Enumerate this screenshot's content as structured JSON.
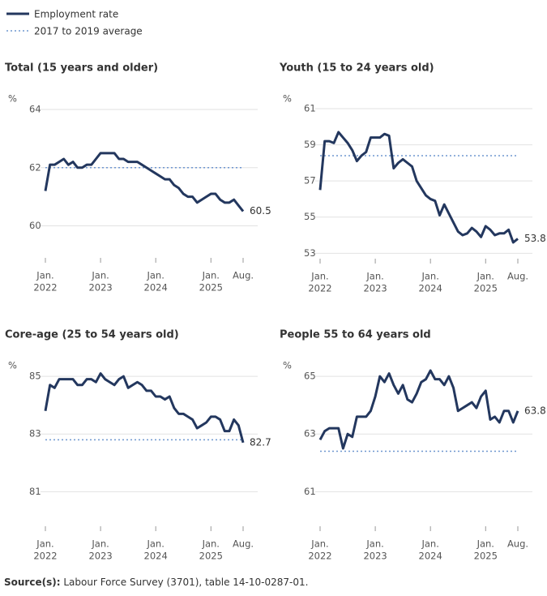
{
  "legend": [
    {
      "name": "Employment rate",
      "color": "#23375e"
    },
    {
      "name": "2017 to 2019 average",
      "color": "#6f97d0"
    }
  ],
  "source_label": "Source(s):",
  "source_text": "Labour Force Survey (3701), table 14-10-0287-01.",
  "chart_data": [
    {
      "type": "line",
      "title": "Total (15 years and older)",
      "y_label": "%",
      "categories": [
        [
          "Jan.",
          "2022"
        ],
        null,
        null,
        null,
        null,
        null,
        null,
        null,
        null,
        null,
        null,
        null,
        [
          "Jan.",
          "2023"
        ],
        null,
        null,
        null,
        null,
        null,
        null,
        null,
        null,
        null,
        null,
        null,
        [
          "Jan.",
          "2024"
        ],
        null,
        null,
        null,
        null,
        null,
        null,
        null,
        null,
        null,
        null,
        null,
        [
          "Jan.",
          "2025"
        ],
        null,
        null,
        null,
        null,
        null,
        null,
        [
          "Aug."
        ]
      ],
      "series": [
        {
          "name": "Employment rate",
          "color": "#23375e",
          "values": [
            61.2,
            62.1,
            62.1,
            62.2,
            62.3,
            62.1,
            62.2,
            62.0,
            62.0,
            62.1,
            62.1,
            62.3,
            62.5,
            62.5,
            62.5,
            62.5,
            62.3,
            62.3,
            62.2,
            62.2,
            62.2,
            62.1,
            62.0,
            61.9,
            61.8,
            61.7,
            61.6,
            61.6,
            61.4,
            61.3,
            61.1,
            61.0,
            61.0,
            60.8,
            60.9,
            61.0,
            61.1,
            61.1,
            60.9,
            60.8,
            60.8,
            60.9,
            60.7,
            60.5
          ]
        }
      ],
      "average": 62.0,
      "ylim": [
        58.9,
        64
      ],
      "yticks": [
        60,
        62,
        64
      ]
    },
    {
      "type": "line",
      "title": "Youth (15 to 24 years old)",
      "y_label": "%",
      "categories": [
        [
          "Jan.",
          "2022"
        ],
        null,
        null,
        null,
        null,
        null,
        null,
        null,
        null,
        null,
        null,
        null,
        [
          "Jan.",
          "2023"
        ],
        null,
        null,
        null,
        null,
        null,
        null,
        null,
        null,
        null,
        null,
        null,
        [
          "Jan.",
          "2024"
        ],
        null,
        null,
        null,
        null,
        null,
        null,
        null,
        null,
        null,
        null,
        null,
        [
          "Jan.",
          "2025"
        ],
        null,
        null,
        null,
        null,
        null,
        null,
        [
          "Aug."
        ]
      ],
      "series": [
        {
          "name": "Employment rate",
          "color": "#23375e",
          "values": [
            56.5,
            59.2,
            59.2,
            59.1,
            59.7,
            59.4,
            59.1,
            58.7,
            58.1,
            58.4,
            58.6,
            59.4,
            59.4,
            59.4,
            59.6,
            59.5,
            57.7,
            58.0,
            58.2,
            58.0,
            57.8,
            57.0,
            56.6,
            56.2,
            56.0,
            55.9,
            55.1,
            55.7,
            55.2,
            54.7,
            54.2,
            54.0,
            54.1,
            54.4,
            54.2,
            53.9,
            54.5,
            54.3,
            54.0,
            54.1,
            54.1,
            54.3,
            53.6,
            53.8
          ]
        }
      ],
      "average": 58.4,
      "ylim": [
        52.7,
        61
      ],
      "yticks": [
        53,
        55,
        57,
        59,
        61
      ]
    },
    {
      "type": "line",
      "title": "Core-age (25 to 54 years old)",
      "y_label": "%",
      "categories": [
        [
          "Jan.",
          "2022"
        ],
        null,
        null,
        null,
        null,
        null,
        null,
        null,
        null,
        null,
        null,
        null,
        [
          "Jan.",
          "2023"
        ],
        null,
        null,
        null,
        null,
        null,
        null,
        null,
        null,
        null,
        null,
        null,
        [
          "Jan.",
          "2024"
        ],
        null,
        null,
        null,
        null,
        null,
        null,
        null,
        null,
        null,
        null,
        null,
        [
          "Jan.",
          "2025"
        ],
        null,
        null,
        null,
        null,
        null,
        null,
        [
          "Aug."
        ]
      ],
      "series": [
        {
          "name": "Employment rate",
          "color": "#23375e",
          "values": [
            83.8,
            84.7,
            84.6,
            84.9,
            84.9,
            84.9,
            84.9,
            84.7,
            84.7,
            84.9,
            84.9,
            84.8,
            85.1,
            84.9,
            84.8,
            84.7,
            84.9,
            85.0,
            84.6,
            84.7,
            84.8,
            84.7,
            84.5,
            84.5,
            84.3,
            84.3,
            84.2,
            84.3,
            83.9,
            83.7,
            83.7,
            83.6,
            83.5,
            83.2,
            83.3,
            83.4,
            83.6,
            83.6,
            83.5,
            83.1,
            83.1,
            83.5,
            83.3,
            82.7
          ]
        }
      ],
      "average": 82.8,
      "ylim": [
        79.8,
        85.2
      ],
      "yticks": [
        81,
        83,
        85
      ]
    },
    {
      "type": "line",
      "title": "People 55 to 64 years old",
      "y_label": "%",
      "categories": [
        [
          "Jan.",
          "2022"
        ],
        null,
        null,
        null,
        null,
        null,
        null,
        null,
        null,
        null,
        null,
        null,
        [
          "Jan.",
          "2023"
        ],
        null,
        null,
        null,
        null,
        null,
        null,
        null,
        null,
        null,
        null,
        null,
        [
          "Jan.",
          "2024"
        ],
        null,
        null,
        null,
        null,
        null,
        null,
        null,
        null,
        null,
        null,
        null,
        [
          "Jan.",
          "2025"
        ],
        null,
        null,
        null,
        null,
        null,
        null,
        [
          "Aug."
        ]
      ],
      "series": [
        {
          "name": "Employment rate",
          "color": "#23375e",
          "values": [
            62.8,
            63.1,
            63.2,
            63.2,
            63.2,
            62.5,
            63.0,
            62.9,
            63.6,
            63.6,
            63.6,
            63.8,
            64.3,
            65.0,
            64.8,
            65.1,
            64.7,
            64.4,
            64.7,
            64.2,
            64.1,
            64.4,
            64.8,
            64.9,
            65.2,
            64.9,
            64.9,
            64.7,
            65.0,
            64.6,
            63.8,
            63.9,
            64.0,
            64.1,
            63.9,
            64.3,
            64.5,
            63.5,
            63.6,
            63.4,
            63.8,
            63.8,
            63.4,
            63.8
          ]
        }
      ],
      "average": 62.4,
      "ylim": [
        59.8,
        65.2
      ],
      "yticks": [
        61,
        63,
        65
      ]
    }
  ]
}
